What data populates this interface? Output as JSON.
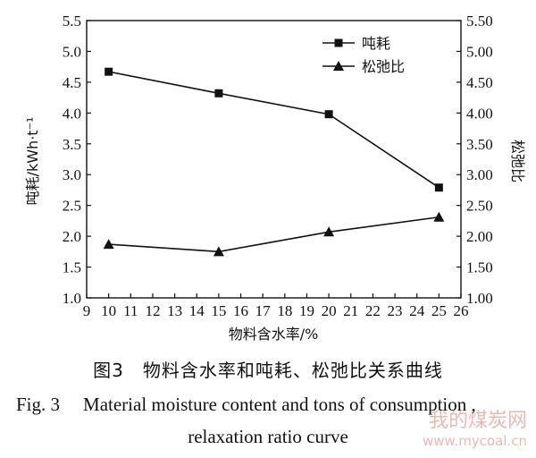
{
  "chart_data": {
    "type": "line",
    "x": [
      10,
      15,
      20,
      25
    ],
    "xlim": [
      9,
      26
    ],
    "xticks": [
      9,
      10,
      11,
      12,
      13,
      14,
      15,
      16,
      17,
      18,
      19,
      20,
      21,
      22,
      23,
      24,
      25,
      26
    ],
    "xlabel": "物料含水率/%",
    "ylabel_left": "吨耗/kWh·t⁻¹",
    "ylim_left": [
      1.0,
      5.5
    ],
    "yticks_left": [
      "1.0",
      "1.5",
      "2.0",
      "2.5",
      "3.0",
      "3.5",
      "4.0",
      "4.5",
      "5.0",
      "5.5"
    ],
    "ylabel_right": "松弛比",
    "ylim_right": [
      1.0,
      5.5
    ],
    "yticks_right": [
      "1.00",
      "1.50",
      "2.00",
      "2.50",
      "3.00",
      "3.50",
      "4.00",
      "4.50",
      "5.00",
      "5.50"
    ],
    "legend_position": "top-right",
    "series": [
      {
        "name": "吨耗",
        "marker": "square",
        "axis": "left",
        "values": [
          4.67,
          4.32,
          3.98,
          2.79
        ]
      },
      {
        "name": "松弛比",
        "marker": "triangle",
        "axis": "right",
        "values": [
          1.87,
          1.75,
          2.07,
          2.31
        ]
      }
    ]
  },
  "caption": {
    "cn": "图3　物料含水率和吨耗、松弛比关系曲线",
    "en_fig": "Fig. 3",
    "en_line1": "Material moisture content and tons of consumption ,",
    "en_line2": "relaxation ratio curve"
  },
  "watermark": {
    "cn": "我的煤炭网",
    "url": "www.mycoal.cn"
  }
}
